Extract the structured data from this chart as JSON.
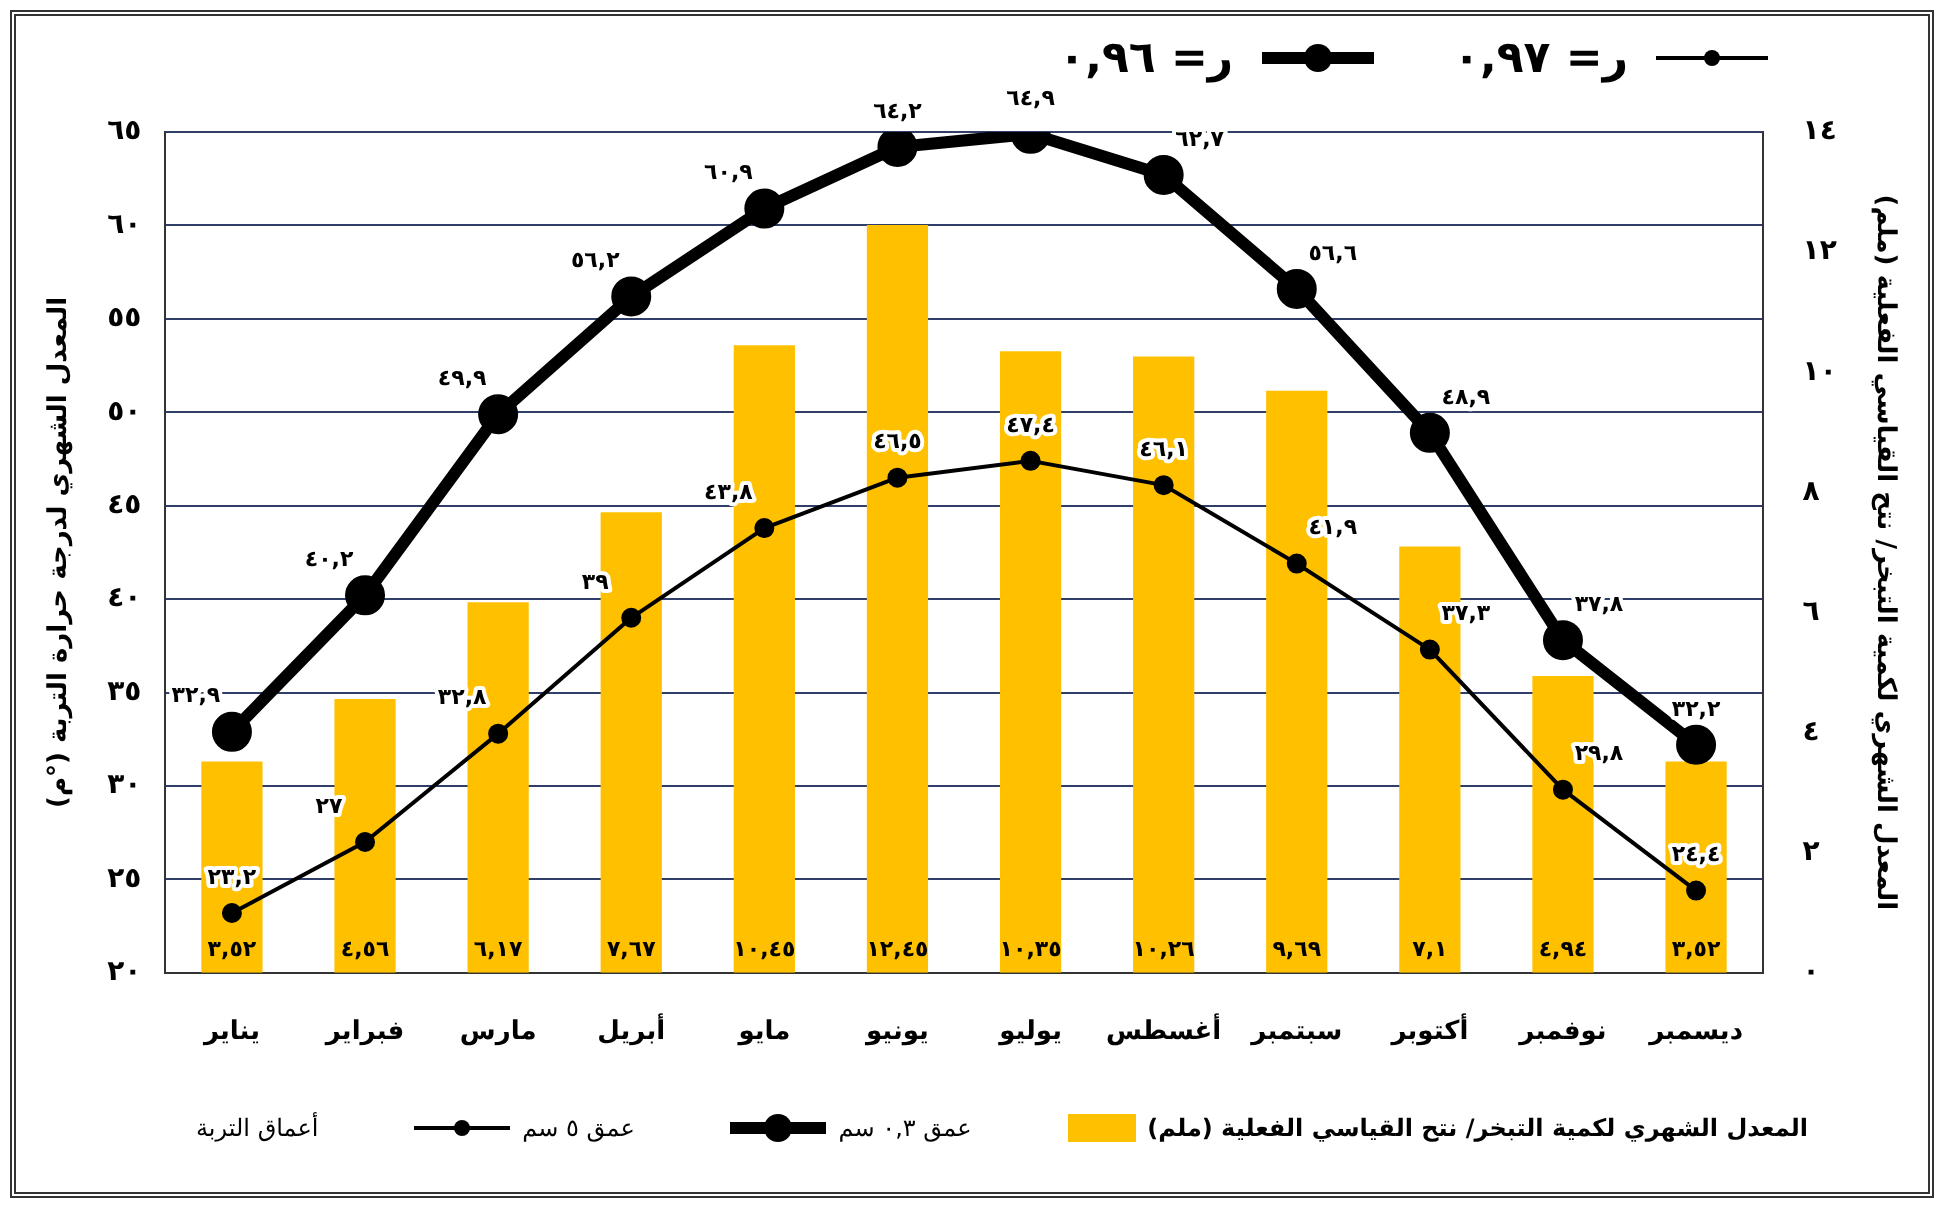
{
  "chart_data": {
    "type": "bar",
    "categories": [
      "يناير",
      "فبراير",
      "مارس",
      "أبريل",
      "مايو",
      "يونيو",
      "يوليو",
      "أغسطس",
      "سبتمبر",
      "أكتوبر",
      "نوفمبر",
      "ديسمبر"
    ],
    "ylabel": "المعدل الشهري لدرجة حرارة التربة (°م)",
    "y2label": "المعدل الشهري لكمية التبخر/ نتح القياسي الفعلية (ملم)",
    "legend_title": "أعماق التربة",
    "annotations": [
      "ر= ٠,٩٦",
      "ر= ٠,٩٧"
    ],
    "ylim": [
      20,
      65
    ],
    "yticks": [
      {
        "value": 20,
        "label": "٢٠"
      },
      {
        "value": 25,
        "label": "٢٥"
      },
      {
        "value": 30,
        "label": "٣٠"
      },
      {
        "value": 35,
        "label": "٣٥"
      },
      {
        "value": 40,
        "label": "٤٠"
      },
      {
        "value": 45,
        "label": "٤٥"
      },
      {
        "value": 50,
        "label": "٥٠"
      },
      {
        "value": 55,
        "label": "٥٥"
      },
      {
        "value": 60,
        "label": "٦٠"
      },
      {
        "value": 65,
        "label": "٦٥"
      }
    ],
    "y2lim": [
      0,
      14
    ],
    "y2ticks": [
      {
        "value": 0,
        "label": "٠"
      },
      {
        "value": 2,
        "label": "٢"
      },
      {
        "value": 4,
        "label": "٤"
      },
      {
        "value": 6,
        "label": "٦"
      },
      {
        "value": 8,
        "label": "٨"
      },
      {
        "value": 10,
        "label": "١٠"
      },
      {
        "value": 12,
        "label": "١٢"
      },
      {
        "value": 14,
        "label": "١٤"
      }
    ],
    "grid": "y",
    "legend": "bottom",
    "marker": "circle",
    "line_style": "solid",
    "series": [
      {
        "name": "المعدل الشهري لكمية التبخر/ نتح القياسي الفعلية (ملم)",
        "axis": "y2",
        "color": "#ffc000",
        "values": [
          3.52,
          4.56,
          6.17,
          7.67,
          10.45,
          12.45,
          10.35,
          10.26,
          9.69,
          7.1,
          4.94,
          3.52
        ],
        "value_labels": [
          "٣,٥٢",
          "٤,٥٦",
          "٦,١٧",
          "٧,٦٧",
          "١٠,٤٥",
          "١٢,٤٥",
          "١٠,٣٥",
          "١٠,٢٦",
          "٩,٦٩",
          "٧,١",
          "٤,٩٤",
          "٣,٥٢"
        ]
      },
      {
        "name": "عمق ٠,٣ سم",
        "type": "line",
        "color": "#000000",
        "values": [
          32.9,
          40.2,
          49.9,
          56.2,
          60.9,
          64.2,
          64.9,
          62.7,
          56.6,
          48.9,
          37.8,
          32.2
        ],
        "value_labels": [
          "٣٢,٩",
          "٤٠,٢",
          "٤٩,٩",
          "٥٦,٢",
          "٦٠,٩",
          "٦٤,٢",
          "٦٤,٩",
          "٦٢,٧",
          "٥٦,٦",
          "٤٨,٩",
          "٣٧,٨",
          "٣٢,٢"
        ]
      },
      {
        "name": "عمق ٥ سم",
        "type": "line",
        "color": "#000000",
        "values": [
          23.2,
          27,
          32.8,
          39,
          43.8,
          46.5,
          47.4,
          46.1,
          41.9,
          37.3,
          29.8,
          24.4
        ],
        "value_labels": [
          "٢٣,٢",
          "٢٧",
          "٣٢,٨",
          "٣٩",
          "٤٣,٨",
          "٤٦,٥",
          "٤٧,٤",
          "٤٦,١",
          "٤١,٩",
          "٣٧,٣",
          "٢٩,٨",
          "٢٤,٤"
        ]
      }
    ]
  }
}
